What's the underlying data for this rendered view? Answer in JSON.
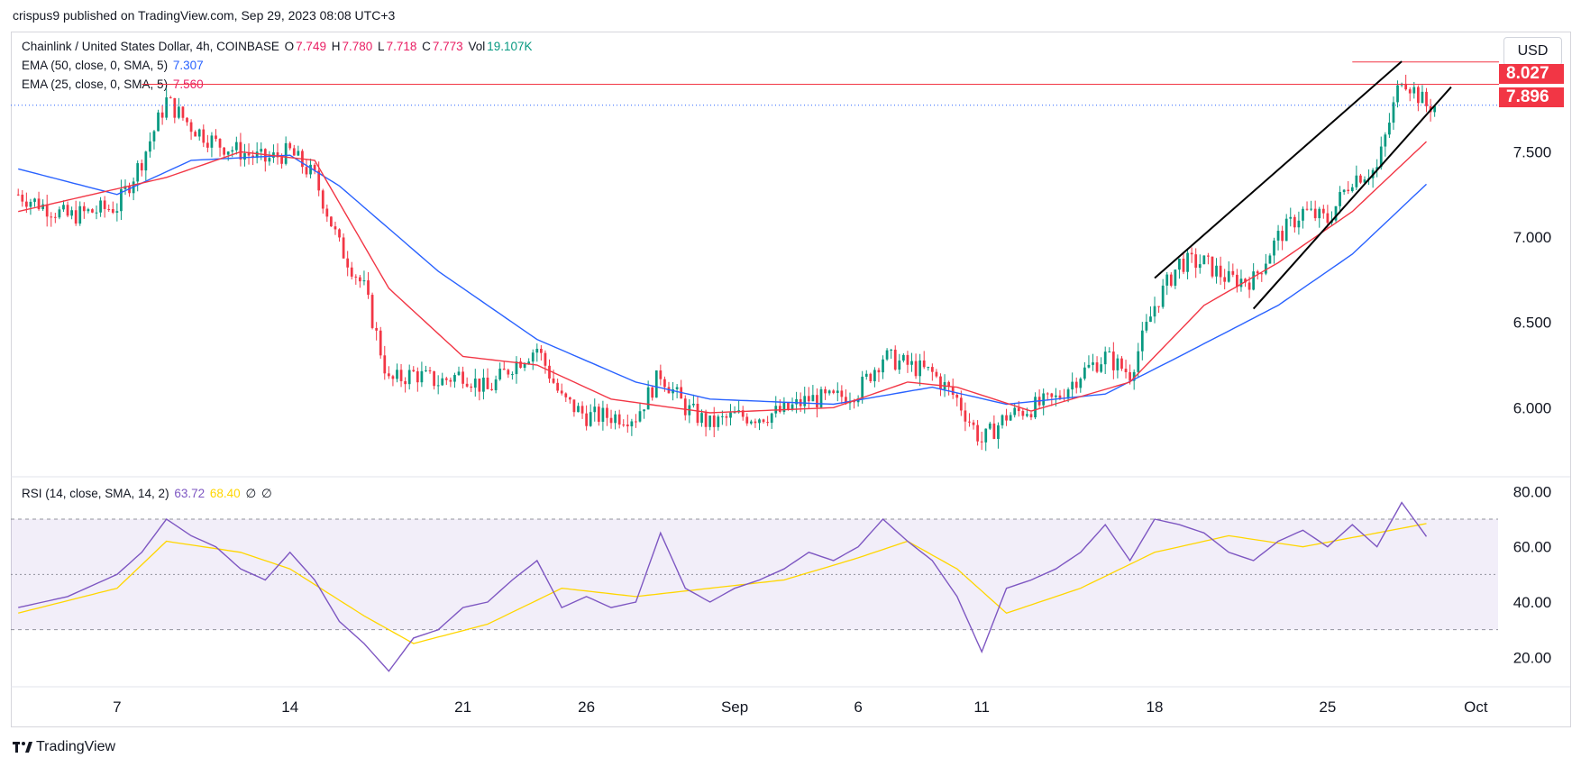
{
  "header": {
    "published": "crispus9 published on TradingView.com, Sep 29, 2023 08:08 UTC+3"
  },
  "legend": {
    "symbol": "Chainlink / United States Dollar, 4h, COINBASE",
    "o_label": "O",
    "o_value": "7.749",
    "h_label": "H",
    "h_value": "7.780",
    "l_label": "L",
    "l_value": "7.718",
    "c_label": "C",
    "c_value": "7.773",
    "vol_label": "Vol",
    "vol_value": "19.107K",
    "ema50_label": "EMA (50, close, 0, SMA, 5)",
    "ema50_value": "7.307",
    "ema25_label": "EMA (25, close, 0, SMA, 5)",
    "ema25_value": "7.560",
    "rsi_label": "RSI (14, close, SMA, 14, 2)",
    "rsi_value": "63.72",
    "rsi_sma_value": "68.40",
    "rsi_extra1": "∅",
    "rsi_extra2": "∅"
  },
  "currency_button": "USD",
  "price_tags": {
    "high_line": "8.027",
    "resistance_line": "7.896"
  },
  "footer": {
    "brand": "TradingView"
  },
  "colors": {
    "up": "#089981",
    "down": "#f23645",
    "ema50": "#2962ff",
    "ema25": "#f23645",
    "rsi": "#7e57c2",
    "rsi_sma": "#ffd600",
    "trendline": "#000000",
    "hline": "#f23645"
  },
  "chart_data": [
    {
      "type": "candlestick",
      "title": "Chainlink / United States Dollar, 4h, COINBASE",
      "ylim": [
        5.6,
        8.2
      ],
      "y_ticks": [
        "7.500",
        "7.000",
        "6.500",
        "6.000"
      ],
      "x_ticks": [
        "7",
        "14",
        "21",
        "26",
        "Sep",
        "6",
        "11",
        "18",
        "25",
        "Oct"
      ],
      "horizontal_lines": [
        8.027,
        7.896
      ],
      "dotted_line": 7.773,
      "close_path": [
        [
          "Aug 3",
          7.25
        ],
        [
          "Aug 5",
          7.12
        ],
        [
          "Aug 7",
          7.18
        ],
        [
          "Aug 8",
          7.45
        ],
        [
          "Aug 9",
          7.8
        ],
        [
          "Aug 10",
          7.65
        ],
        [
          "Aug 11",
          7.55
        ],
        [
          "Aug 12",
          7.5
        ],
        [
          "Aug 13",
          7.45
        ],
        [
          "Aug 14",
          7.5
        ],
        [
          "Aug 15",
          7.35
        ],
        [
          "Aug 16",
          6.95
        ],
        [
          "Aug 17",
          6.7
        ],
        [
          "Aug 18",
          6.15
        ],
        [
          "Aug 19",
          6.2
        ],
        [
          "Aug 20",
          6.15
        ],
        [
          "Aug 21",
          6.2
        ],
        [
          "Aug 22",
          6.1
        ],
        [
          "Aug 23",
          6.25
        ],
        [
          "Aug 24",
          6.35
        ],
        [
          "Aug 25",
          6.05
        ],
        [
          "Aug 26",
          5.95
        ],
        [
          "Aug 27",
          5.95
        ],
        [
          "Aug 28",
          5.95
        ],
        [
          "Aug 29",
          6.2
        ],
        [
          "Aug 30",
          6.0
        ],
        [
          "Aug 31",
          5.9
        ],
        [
          "Sep 1",
          5.95
        ],
        [
          "Sep 2",
          5.95
        ],
        [
          "Sep 3",
          5.98
        ],
        [
          "Sep 4",
          6.05
        ],
        [
          "Sep 5",
          6.05
        ],
        [
          "Sep 6",
          6.1
        ],
        [
          "Sep 7",
          6.3
        ],
        [
          "Sep 8",
          6.25
        ],
        [
          "Sep 9",
          6.2
        ],
        [
          "Sep 10",
          6.05
        ],
        [
          "Sep 11",
          5.8
        ],
        [
          "Sep 12",
          5.95
        ],
        [
          "Sep 13",
          6.0
        ],
        [
          "Sep 14",
          6.05
        ],
        [
          "Sep 15",
          6.2
        ],
        [
          "Sep 16",
          6.3
        ],
        [
          "Sep 17",
          6.2
        ],
        [
          "Sep 18",
          6.6
        ],
        [
          "Sep 19",
          6.85
        ],
        [
          "Sep 20",
          6.85
        ],
        [
          "Sep 21",
          6.75
        ],
        [
          "Sep 22",
          6.75
        ],
        [
          "Sep 23",
          7.0
        ],
        [
          "Sep 24",
          7.15
        ],
        [
          "Sep 25",
          7.1
        ],
        [
          "Sep 26",
          7.35
        ],
        [
          "Sep 27",
          7.4
        ],
        [
          "Sep 28",
          7.95
        ],
        [
          "Sep 29",
          7.77
        ]
      ],
      "ema25_path": [
        [
          "Aug 3",
          7.15
        ],
        [
          "Aug 9",
          7.35
        ],
        [
          "Aug 12",
          7.5
        ],
        [
          "Aug 15",
          7.45
        ],
        [
          "Aug 18",
          6.7
        ],
        [
          "Aug 21",
          6.3
        ],
        [
          "Aug 24",
          6.25
        ],
        [
          "Aug 27",
          6.05
        ],
        [
          "Aug 31",
          5.97
        ],
        [
          "Sep 5",
          6.0
        ],
        [
          "Sep 8",
          6.15
        ],
        [
          "Sep 10",
          6.12
        ],
        [
          "Sep 13",
          5.98
        ],
        [
          "Sep 17",
          6.15
        ],
        [
          "Sep 20",
          6.6
        ],
        [
          "Sep 23",
          6.85
        ],
        [
          "Sep 26",
          7.15
        ],
        [
          "Sep 29",
          7.56
        ]
      ],
      "ema50_path": [
        [
          "Aug 3",
          7.4
        ],
        [
          "Aug 7",
          7.25
        ],
        [
          "Aug 10",
          7.45
        ],
        [
          "Aug 14",
          7.48
        ],
        [
          "Aug 16",
          7.3
        ],
        [
          "Aug 20",
          6.8
        ],
        [
          "Aug 24",
          6.4
        ],
        [
          "Aug 28",
          6.15
        ],
        [
          "Aug 31",
          6.05
        ],
        [
          "Sep 5",
          6.02
        ],
        [
          "Sep 9",
          6.12
        ],
        [
          "Sep 12",
          6.02
        ],
        [
          "Sep 16",
          6.08
        ],
        [
          "Sep 19",
          6.3
        ],
        [
          "Sep 23",
          6.6
        ],
        [
          "Sep 26",
          6.9
        ],
        [
          "Sep 29",
          7.31
        ]
      ],
      "trendlines": [
        {
          "from": [
            "Sep 18",
            6.76
          ],
          "to": [
            "Sep 28",
            8.03
          ]
        },
        {
          "from": [
            "Sep 22",
            6.58
          ],
          "to": [
            "Sep 30",
            7.88
          ]
        }
      ]
    },
    {
      "type": "line",
      "title": "RSI (14, close, SMA, 14, 2)",
      "ylim": [
        10,
        85
      ],
      "y_ticks": [
        "80.00",
        "60.00",
        "40.00",
        "20.00"
      ],
      "bands": [
        70,
        50,
        30
      ],
      "series": [
        {
          "values_path": [
            [
              "Aug 3",
              38
            ],
            [
              "Aug 5",
              42
            ],
            [
              "Aug 7",
              50
            ],
            [
              "Aug 8",
              58
            ],
            [
              "Aug 9",
              70
            ],
            [
              "Aug 10",
              64
            ],
            [
              "Aug 11",
              60
            ],
            [
              "Aug 12",
              52
            ],
            [
              "Aug 13",
              48
            ],
            [
              "Aug 14",
              58
            ],
            [
              "Aug 15",
              48
            ],
            [
              "Aug 16",
              33
            ],
            [
              "Aug 17",
              25
            ],
            [
              "Aug 18",
              15
            ],
            [
              "Aug 19",
              27
            ],
            [
              "Aug 20",
              30
            ],
            [
              "Aug 21",
              38
            ],
            [
              "Aug 22",
              40
            ],
            [
              "Aug 23",
              48
            ],
            [
              "Aug 24",
              55
            ],
            [
              "Aug 25",
              38
            ],
            [
              "Aug 26",
              42
            ],
            [
              "Aug 27",
              38
            ],
            [
              "Aug 28",
              40
            ],
            [
              "Aug 29",
              65
            ],
            [
              "Aug 30",
              45
            ],
            [
              "Aug 31",
              40
            ],
            [
              "Sep 1",
              45
            ],
            [
              "Sep 2",
              48
            ],
            [
              "Sep 3",
              52
            ],
            [
              "Sep 4",
              58
            ],
            [
              "Sep 5",
              55
            ],
            [
              "Sep 6",
              60
            ],
            [
              "Sep 7",
              70
            ],
            [
              "Sep 8",
              62
            ],
            [
              "Sep 9",
              55
            ],
            [
              "Sep 10",
              42
            ],
            [
              "Sep 11",
              22
            ],
            [
              "Sep 12",
              45
            ],
            [
              "Sep 13",
              48
            ],
            [
              "Sep 14",
              52
            ],
            [
              "Sep 15",
              58
            ],
            [
              "Sep 16",
              68
            ],
            [
              "Sep 17",
              55
            ],
            [
              "Sep 18",
              70
            ],
            [
              "Sep 19",
              68
            ],
            [
              "Sep 20",
              65
            ],
            [
              "Sep 21",
              58
            ],
            [
              "Sep 22",
              55
            ],
            [
              "Sep 23",
              62
            ],
            [
              "Sep 24",
              66
            ],
            [
              "Sep 25",
              60
            ],
            [
              "Sep 26",
              68
            ],
            [
              "Sep 27",
              60
            ],
            [
              "Sep 28",
              76
            ],
            [
              "Sep 29",
              63.72
            ]
          ]
        },
        {
          "values_path": [
            [
              "Aug 3",
              36
            ],
            [
              "Aug 7",
              45
            ],
            [
              "Aug 9",
              62
            ],
            [
              "Aug 12",
              58
            ],
            [
              "Aug 14",
              52
            ],
            [
              "Aug 17",
              35
            ],
            [
              "Aug 19",
              25
            ],
            [
              "Aug 22",
              32
            ],
            [
              "Aug 25",
              45
            ],
            [
              "Aug 28",
              42
            ],
            [
              "Aug 31",
              45
            ],
            [
              "Sep 3",
              48
            ],
            [
              "Sep 6",
              56
            ],
            [
              "Sep 8",
              62
            ],
            [
              "Sep 10",
              52
            ],
            [
              "Sep 12",
              36
            ],
            [
              "Sep 15",
              45
            ],
            [
              "Sep 18",
              58
            ],
            [
              "Sep 21",
              64
            ],
            [
              "Sep 24",
              60
            ],
            [
              "Sep 27",
              65
            ],
            [
              "Sep 29",
              68.4
            ]
          ]
        }
      ]
    }
  ]
}
